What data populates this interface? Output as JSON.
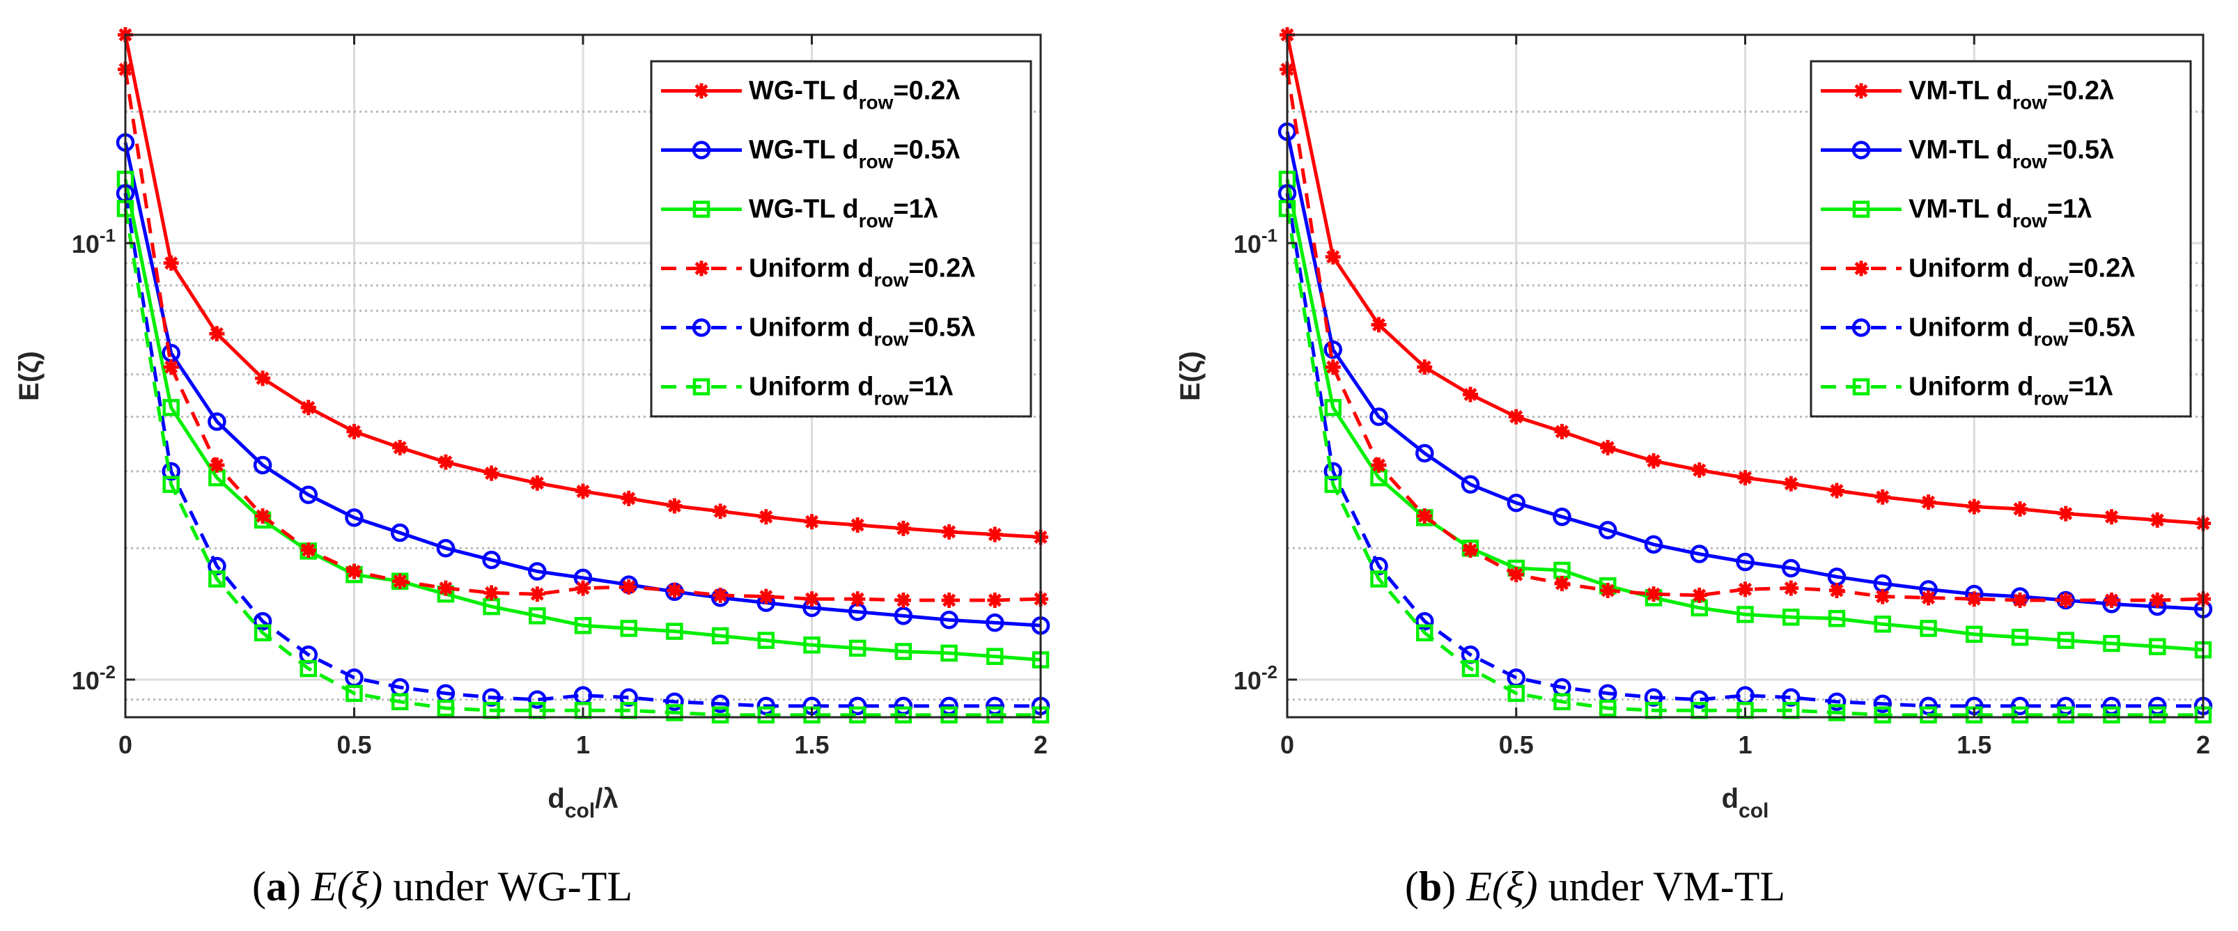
{
  "figure": {
    "caption_a": {
      "label": "a",
      "text": "under WG-TL",
      "math": "E(ξ)"
    },
    "caption_b": {
      "label": "b",
      "text": "under VM-TL",
      "math": "E(ξ)"
    }
  },
  "chart_data": [
    {
      "type": "line",
      "id": "a",
      "title": "",
      "xlabel": "d_col/λ",
      "xlabel_parts": {
        "base": "d",
        "sub": "col",
        "tail": "/λ"
      },
      "ylabel": "E(ζ)",
      "yscale": "log",
      "xlim": [
        0,
        2
      ],
      "ylim": [
        0.0082,
        0.3
      ],
      "xticks": [
        0,
        0.5,
        1,
        1.5,
        2
      ],
      "xtick_labels": [
        "0",
        "0.5",
        "1",
        "1.5",
        "2"
      ],
      "yticks_major": [
        {
          "value": 0.1,
          "base": "10",
          "exp": "-1"
        },
        {
          "value": 0.01,
          "base": "10",
          "exp": "-2"
        }
      ],
      "grid": true,
      "legend_position": "top-right",
      "x": [
        0,
        0.1,
        0.2,
        0.3,
        0.4,
        0.5,
        0.6,
        0.7,
        0.8,
        0.9,
        1.0,
        1.1,
        1.2,
        1.3,
        1.4,
        1.5,
        1.6,
        1.7,
        1.8,
        1.9,
        2.0
      ],
      "series": [
        {
          "name": "WG-TL d_row=0.2λ",
          "legend_prefix": "WG-TL d",
          "legend_sub": "row",
          "legend_suffix": "=0.2λ",
          "color": "#ff0000",
          "dash": false,
          "marker": "asterisk",
          "values": [
            0.3,
            0.09,
            0.062,
            0.049,
            0.042,
            0.037,
            0.034,
            0.0315,
            0.0297,
            0.0282,
            0.027,
            0.026,
            0.025,
            0.0243,
            0.0236,
            0.023,
            0.0226,
            0.0222,
            0.0218,
            0.0215,
            0.0212
          ]
        },
        {
          "name": "WG-TL d_row=0.5λ",
          "legend_prefix": "WG-TL d",
          "legend_sub": "row",
          "legend_suffix": "=0.5λ",
          "color": "#0000ff",
          "dash": false,
          "marker": "circle",
          "values": [
            0.17,
            0.056,
            0.039,
            0.031,
            0.0265,
            0.0235,
            0.0217,
            0.02,
            0.0188,
            0.0177,
            0.0171,
            0.0165,
            0.0159,
            0.0154,
            0.015,
            0.0146,
            0.0143,
            0.014,
            0.0137,
            0.0135,
            0.0133
          ]
        },
        {
          "name": "WG-TL d_row=1λ",
          "legend_prefix": "WG-TL d",
          "legend_sub": "row",
          "legend_suffix": "=1λ",
          "color": "#00ee00",
          "dash": false,
          "marker": "square",
          "values": [
            0.14,
            0.042,
            0.029,
            0.0232,
            0.0197,
            0.0174,
            0.0168,
            0.0157,
            0.0147,
            0.014,
            0.0133,
            0.0131,
            0.0129,
            0.0126,
            0.0123,
            0.012,
            0.0118,
            0.0116,
            0.0115,
            0.0113,
            0.0111
          ]
        },
        {
          "name": "Uniform d_row=0.2λ",
          "legend_prefix": "Uniform d",
          "legend_sub": "row",
          "legend_suffix": "=0.2λ",
          "color": "#ff0000",
          "dash": true,
          "marker": "asterisk",
          "values": [
            0.25,
            0.052,
            0.031,
            0.0237,
            0.0198,
            0.0177,
            0.0168,
            0.0162,
            0.0158,
            0.0157,
            0.0162,
            0.0163,
            0.016,
            0.0156,
            0.0155,
            0.0153,
            0.0153,
            0.0152,
            0.0152,
            0.0152,
            0.0153
          ]
        },
        {
          "name": "Uniform d_row=0.5λ",
          "legend_prefix": "Uniform d",
          "legend_sub": "row",
          "legend_suffix": "=0.5λ",
          "color": "#0000ff",
          "dash": true,
          "marker": "circle",
          "values": [
            0.13,
            0.03,
            0.0182,
            0.0136,
            0.0114,
            0.0101,
            0.0096,
            0.0093,
            0.0091,
            0.009,
            0.0092,
            0.0091,
            0.0089,
            0.0088,
            0.0087,
            0.0087,
            0.0087,
            0.0087,
            0.0087,
            0.0087,
            0.0087
          ]
        },
        {
          "name": "Uniform d_row=1λ",
          "legend_prefix": "Uniform d",
          "legend_sub": "row",
          "legend_suffix": "=1λ",
          "color": "#00ee00",
          "dash": true,
          "marker": "square",
          "values": [
            0.12,
            0.028,
            0.017,
            0.0128,
            0.0106,
            0.0093,
            0.0089,
            0.0086,
            0.0085,
            0.0085,
            0.0085,
            0.0085,
            0.0084,
            0.0083,
            0.0083,
            0.0083,
            0.0083,
            0.0083,
            0.0083,
            0.0083,
            0.0083
          ]
        }
      ]
    },
    {
      "type": "line",
      "id": "b",
      "title": "",
      "xlabel": "d_col",
      "xlabel_parts": {
        "base": "d",
        "sub": "col",
        "tail": ""
      },
      "ylabel": "E(ζ)",
      "yscale": "log",
      "xlim": [
        0,
        2
      ],
      "ylim": [
        0.0082,
        0.3
      ],
      "xticks": [
        0,
        0.5,
        1,
        1.5,
        2
      ],
      "xtick_labels": [
        "0",
        "0.5",
        "1",
        "1.5",
        "2"
      ],
      "yticks_major": [
        {
          "value": 0.1,
          "base": "10",
          "exp": "-1"
        },
        {
          "value": 0.01,
          "base": "10",
          "exp": "-2"
        }
      ],
      "grid": true,
      "legend_position": "top-right",
      "x": [
        0,
        0.1,
        0.2,
        0.3,
        0.4,
        0.5,
        0.6,
        0.7,
        0.8,
        0.9,
        1.0,
        1.1,
        1.2,
        1.3,
        1.4,
        1.5,
        1.6,
        1.7,
        1.8,
        1.9,
        2.0
      ],
      "series": [
        {
          "name": "VM-TL d_row=0.2λ",
          "legend_prefix": "VM-TL d",
          "legend_sub": "row",
          "legend_suffix": "=0.2λ",
          "color": "#ff0000",
          "dash": false,
          "marker": "asterisk",
          "values": [
            0.3,
            0.093,
            0.065,
            0.052,
            0.045,
            0.04,
            0.037,
            0.034,
            0.0317,
            0.0302,
            0.029,
            0.0281,
            0.0271,
            0.0262,
            0.0255,
            0.0249,
            0.0246,
            0.024,
            0.0236,
            0.0232,
            0.0228
          ]
        },
        {
          "name": "VM-TL d_row=0.5λ",
          "legend_prefix": "VM-TL d",
          "legend_sub": "row",
          "legend_suffix": "=0.5λ",
          "color": "#0000ff",
          "dash": false,
          "marker": "circle",
          "values": [
            0.18,
            0.057,
            0.04,
            0.033,
            0.028,
            0.0254,
            0.0236,
            0.022,
            0.0204,
            0.0194,
            0.0186,
            0.018,
            0.0172,
            0.0166,
            0.0161,
            0.0157,
            0.0155,
            0.0152,
            0.0149,
            0.0147,
            0.0145
          ]
        },
        {
          "name": "VM-TL d_row=1λ",
          "legend_prefix": "VM-TL d",
          "legend_sub": "row",
          "legend_suffix": "=1λ",
          "color": "#00ee00",
          "dash": false,
          "marker": "square",
          "values": [
            0.14,
            0.042,
            0.029,
            0.0235,
            0.02,
            0.018,
            0.0178,
            0.0164,
            0.0154,
            0.0146,
            0.0141,
            0.0139,
            0.0138,
            0.0134,
            0.0131,
            0.0127,
            0.0125,
            0.0123,
            0.0121,
            0.0119,
            0.0117
          ]
        },
        {
          "name": "Uniform d_row=0.2λ",
          "legend_prefix": "Uniform d",
          "legend_sub": "row",
          "legend_suffix": "=0.2λ",
          "color": "#ff0000",
          "dash": true,
          "marker": "asterisk",
          "values": [
            0.25,
            0.052,
            0.031,
            0.0237,
            0.0198,
            0.0174,
            0.0166,
            0.016,
            0.0157,
            0.0156,
            0.0161,
            0.0162,
            0.016,
            0.0155,
            0.0154,
            0.0153,
            0.0152,
            0.0152,
            0.0152,
            0.0152,
            0.0153
          ]
        },
        {
          "name": "Uniform d_row=0.5λ",
          "legend_prefix": "Uniform d",
          "legend_sub": "row",
          "legend_suffix": "=0.5λ",
          "color": "#0000ff",
          "dash": true,
          "marker": "circle",
          "values": [
            0.13,
            0.03,
            0.0182,
            0.0136,
            0.0114,
            0.0101,
            0.0096,
            0.0093,
            0.0091,
            0.009,
            0.0092,
            0.0091,
            0.0089,
            0.0088,
            0.0087,
            0.0087,
            0.0087,
            0.0087,
            0.0087,
            0.0087,
            0.0087
          ]
        },
        {
          "name": "Uniform d_row=1λ",
          "legend_prefix": "Uniform d",
          "legend_sub": "row",
          "legend_suffix": "=1λ",
          "color": "#00ee00",
          "dash": true,
          "marker": "square",
          "values": [
            0.12,
            0.028,
            0.017,
            0.0128,
            0.0106,
            0.0093,
            0.0089,
            0.0086,
            0.0085,
            0.0085,
            0.0085,
            0.0085,
            0.0084,
            0.0083,
            0.0083,
            0.0083,
            0.0083,
            0.0083,
            0.0083,
            0.0083,
            0.0083
          ]
        }
      ]
    }
  ]
}
